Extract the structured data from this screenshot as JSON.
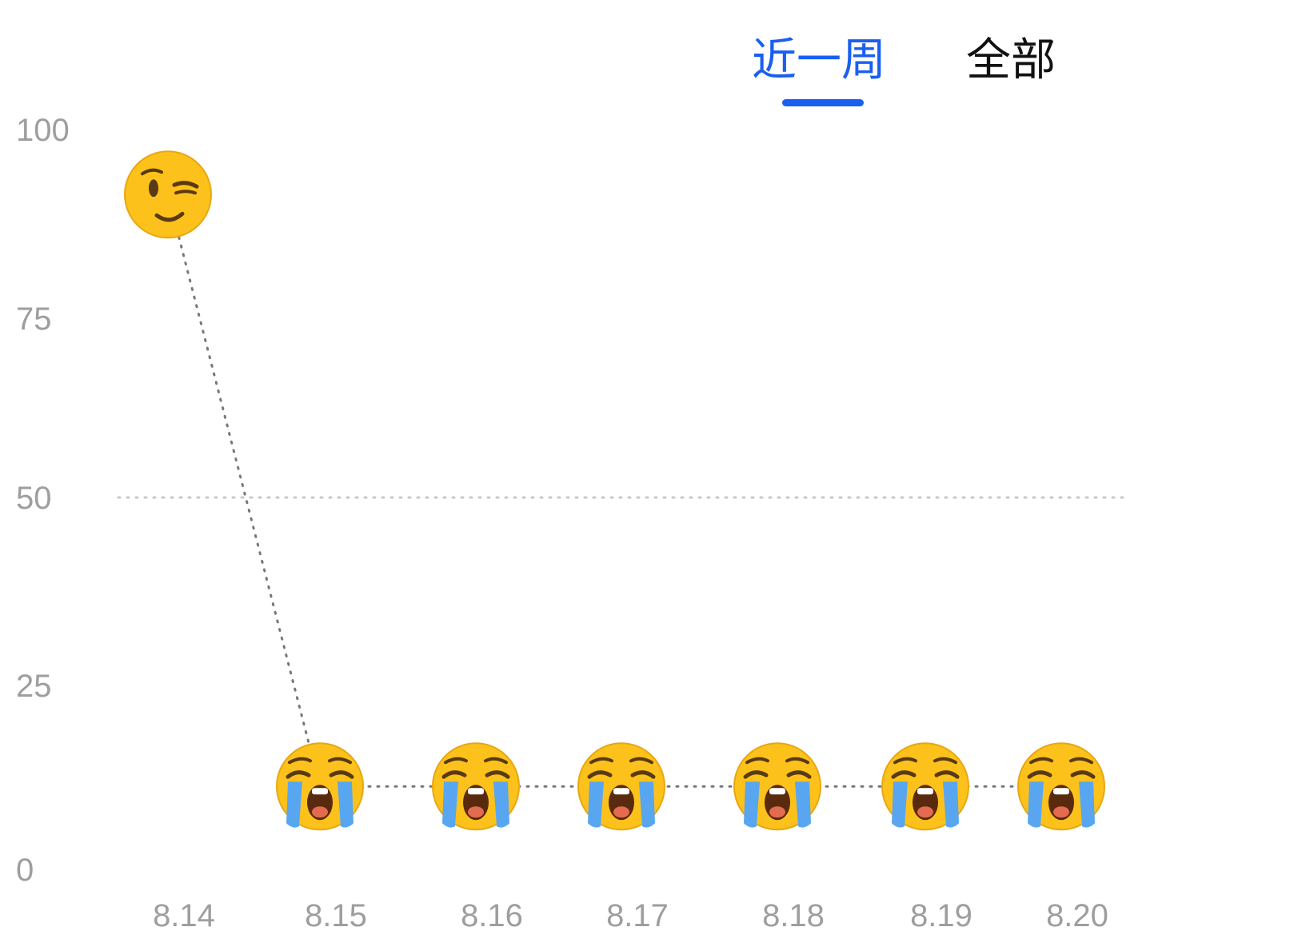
{
  "tabs": {
    "week_label": "近一周",
    "all_label": "全部",
    "active": "week"
  },
  "colors": {
    "accent": "#1a5ff0",
    "tab_inactive": "#111111",
    "tick_label": "#9e9e9e",
    "line": "#777777",
    "reference_line": "#c8c8c8",
    "face": "#fcc21b",
    "tear": "#59a6f0"
  },
  "chart_data": {
    "type": "line",
    "title": "",
    "xlabel": "",
    "ylabel": "",
    "ylim": [
      0,
      100
    ],
    "yticks": [
      "100",
      "75",
      "50",
      "25",
      "0"
    ],
    "categories": [
      "8.14",
      "8.15",
      "8.16",
      "8.17",
      "8.18",
      "8.19",
      "8.20"
    ],
    "series": [
      {
        "values": [
          91,
          11,
          11,
          11,
          11,
          11,
          11
        ],
        "markers": [
          "winking-face-icon",
          "loudly-crying-face-icon",
          "loudly-crying-face-icon",
          "loudly-crying-face-icon",
          "loudly-crying-face-icon",
          "loudly-crying-face-icon",
          "loudly-crying-face-icon"
        ]
      }
    ],
    "reference_lines": [
      50
    ],
    "grid": false,
    "line_style": "dotted"
  }
}
